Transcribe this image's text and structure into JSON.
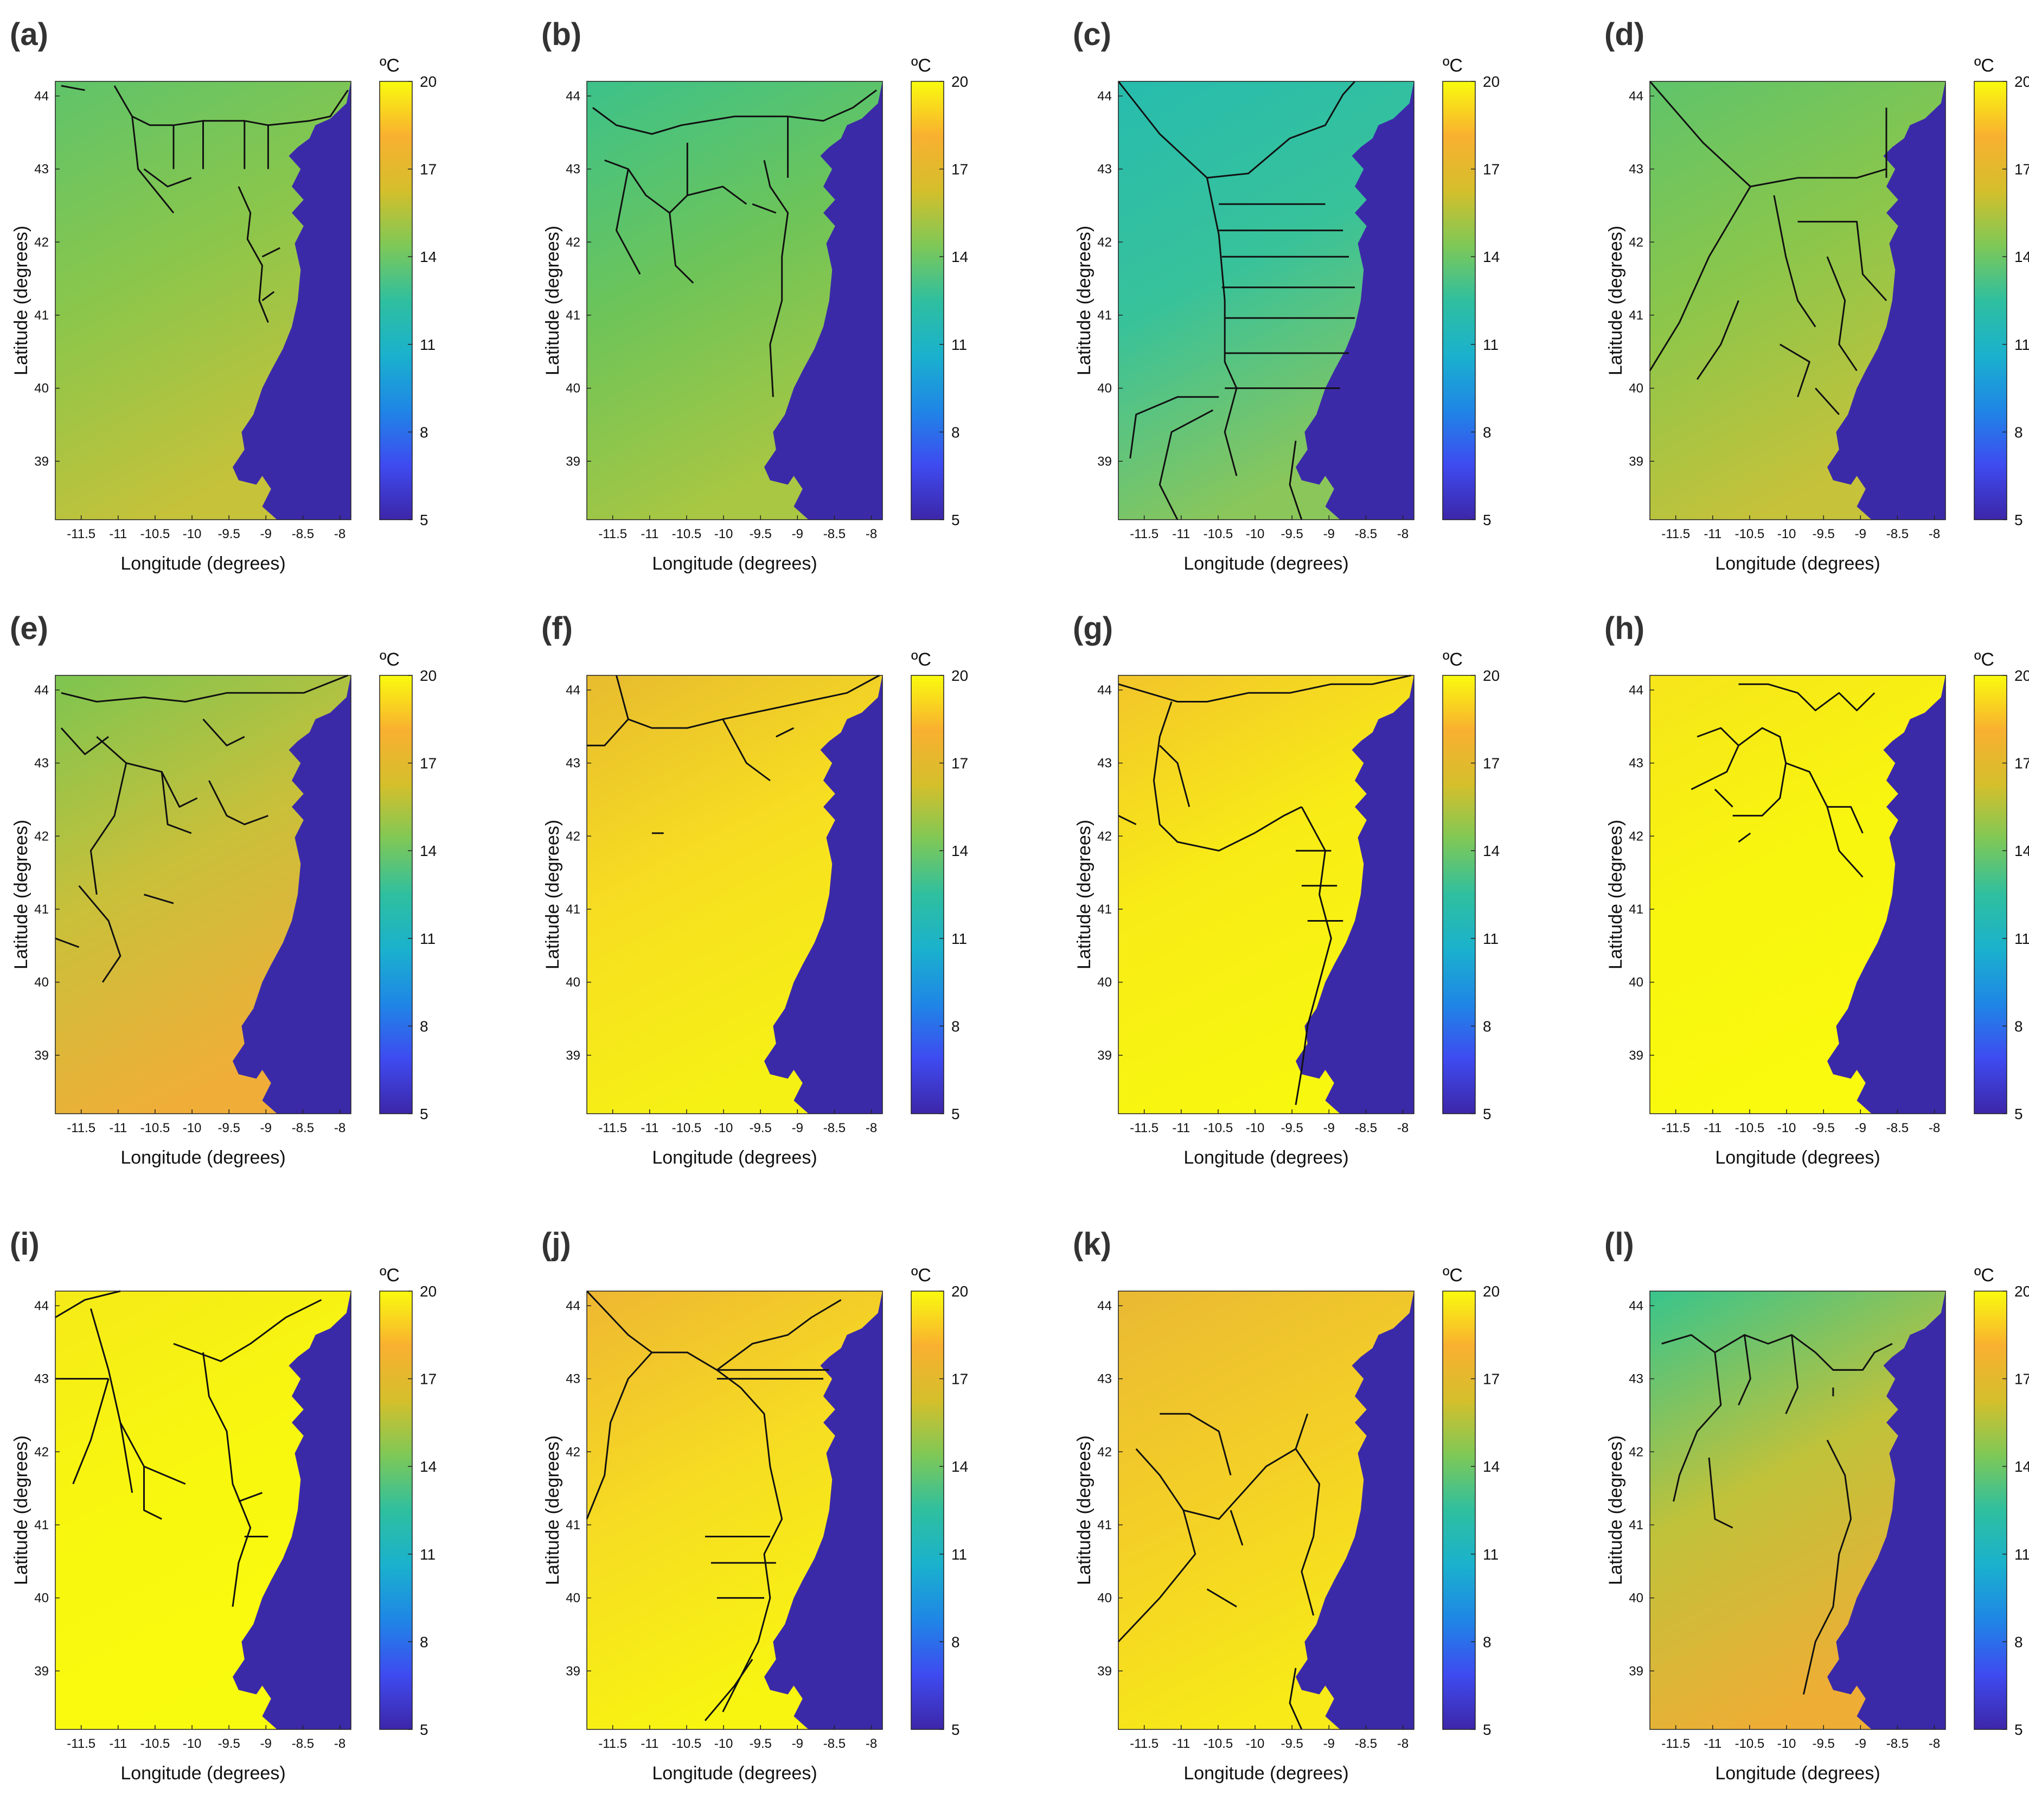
{
  "figure": {
    "panels": [
      {
        "letter": "(a)",
        "palette": "green_mid",
        "network": 0
      },
      {
        "letter": "(b)",
        "palette": "green_mid2",
        "network": 1
      },
      {
        "letter": "(c)",
        "palette": "teal",
        "network": 2
      },
      {
        "letter": "(d)",
        "palette": "green_mid",
        "network": 3
      },
      {
        "letter": "(e)",
        "palette": "green_orange",
        "network": 4
      },
      {
        "letter": "(f)",
        "palette": "orange_yellow",
        "network": 5
      },
      {
        "letter": "(g)",
        "palette": "yellow_orange",
        "network": 6
      },
      {
        "letter": "(h)",
        "palette": "yellow",
        "network": 7
      },
      {
        "letter": "(i)",
        "palette": "yellow2",
        "network": 8
      },
      {
        "letter": "(j)",
        "palette": "yellow_orange2",
        "network": 9
      },
      {
        "letter": "(k)",
        "palette": "orange_yellow2",
        "network": 10
      },
      {
        "letter": "(l)",
        "palette": "green_orange2",
        "network": 11
      }
    ],
    "axes": {
      "xlabel": "Longitude (degrees)",
      "ylabel": "Latitude (degrees)",
      "xticks": [
        "-11.5",
        "-11",
        "-10.5",
        "-10",
        "-9.5",
        "-9",
        "-8.5",
        "-8"
      ],
      "yticks": [
        "44",
        "43",
        "42",
        "41",
        "40",
        "39"
      ],
      "xlim": [
        -11.85,
        -7.85
      ],
      "ylim": [
        38.2,
        44.2
      ]
    },
    "colorbar": {
      "unit": "ºC",
      "ticks": [
        "20",
        "17",
        "14",
        "11",
        "8",
        "5"
      ],
      "range": [
        5,
        20
      ],
      "colors": [
        "#3d26a8",
        "#3e4bf0",
        "#1f86e6",
        "#1ab1cd",
        "#2fbf9f",
        "#7ec857",
        "#d4bf2b",
        "#f9b030",
        "#f9fb0e"
      ]
    },
    "land_color": "#3b2aa8"
  }
}
